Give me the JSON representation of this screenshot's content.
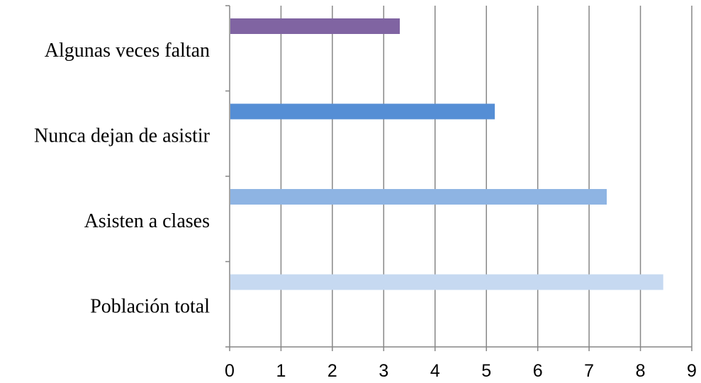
{
  "chart_data": {
    "type": "bar",
    "orientation": "horizontal",
    "categories": [
      "Algunas veces faltan",
      "Nunca dejan de asistir",
      "Asisten a clases",
      "Población total"
    ],
    "values": [
      3.3,
      5.15,
      7.33,
      8.43
    ],
    "colors": [
      "#8064a2",
      "#558ed5",
      "#8eb4e3",
      "#c6d9f1"
    ],
    "xlim": [
      0,
      9
    ],
    "x_ticks": [
      "0",
      "1",
      "2",
      "3",
      "4",
      "5",
      "6",
      "7",
      "8",
      "9"
    ],
    "title": "",
    "xlabel": "",
    "ylabel": "",
    "grid": "vertical",
    "legend": "none"
  }
}
